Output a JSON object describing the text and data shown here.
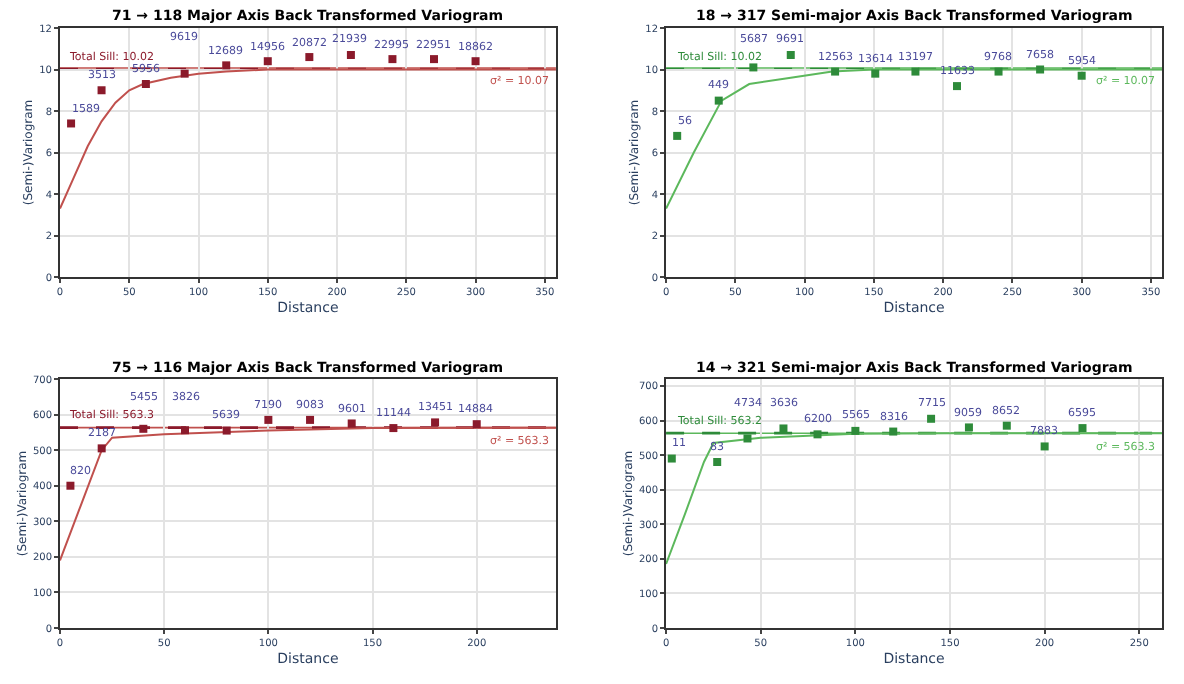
{
  "chart_data": [
    {
      "type": "scatter",
      "title": "71 → 118 Major Axis Back Transformed Variogram",
      "xlabel": "Distance",
      "ylabel": "(Semi-)Variogram",
      "xlim": [
        0,
        358
      ],
      "xticks": [
        0,
        50,
        100,
        150,
        200,
        250,
        300,
        350
      ],
      "ylim": [
        0,
        12
      ],
      "yticks": [
        0,
        2,
        4,
        6,
        8,
        10,
        12
      ],
      "grid": true,
      "series": [
        {
          "type": "scatter",
          "marker": "square",
          "color": "#8b1a2b",
          "x": [
            8,
            30,
            62,
            90,
            120,
            150,
            180,
            210,
            240,
            270,
            300
          ],
          "values": [
            7.4,
            9.0,
            9.3,
            9.8,
            10.2,
            10.4,
            10.6,
            10.7,
            10.5,
            10.5,
            10.4
          ]
        },
        {
          "type": "line",
          "color": "#c0504d",
          "x": [
            0,
            10,
            20,
            30,
            40,
            50,
            60,
            80,
            100,
            120,
            150,
            358
          ],
          "values": [
            3.3,
            4.8,
            6.3,
            7.5,
            8.4,
            9.0,
            9.3,
            9.6,
            9.8,
            9.9,
            10.0,
            10.0
          ]
        }
      ],
      "annotations": [
        {
          "text": "1589",
          "x": 8,
          "y": 7.4
        },
        {
          "text": "3513",
          "x": 30,
          "y": 9.0
        },
        {
          "text": "5956",
          "x": 62,
          "y": 9.3
        },
        {
          "text": "9619",
          "x": 90,
          "y": 9.8
        },
        {
          "text": "12689",
          "x": 120,
          "y": 10.2
        },
        {
          "text": "14956",
          "x": 150,
          "y": 10.4
        },
        {
          "text": "20872",
          "x": 180,
          "y": 10.6
        },
        {
          "text": "21939",
          "x": 210,
          "y": 10.7
        },
        {
          "text": "22995",
          "x": 240,
          "y": 10.5
        },
        {
          "text": "22951",
          "x": 270,
          "y": 10.5
        },
        {
          "text": "18862",
          "x": 300,
          "y": 10.4
        }
      ],
      "ref_lines": [
        {
          "axis": "y",
          "value": 10.02,
          "label": "Total Sill: 10.02",
          "color": "#8b1a2b",
          "line_style": "dashed"
        },
        {
          "axis": "y",
          "value": 10.07,
          "label": "σ² = 10.07",
          "color": "#c0504d",
          "line_style": "solid"
        }
      ]
    },
    {
      "type": "scatter",
      "title": "18 → 317 Semi-major Axis Back Transformed Variogram",
      "xlabel": "Distance",
      "ylabel": "(Semi-)Variogram",
      "xlim": [
        0,
        358
      ],
      "xticks": [
        0,
        50,
        100,
        150,
        200,
        250,
        300,
        350
      ],
      "ylim": [
        0,
        12
      ],
      "yticks": [
        0,
        2,
        4,
        6,
        8,
        10,
        12
      ],
      "grid": true,
      "series": [
        {
          "type": "scatter",
          "marker": "square",
          "color": "#2e8b3a",
          "x": [
            8,
            38,
            63,
            90,
            122,
            151,
            180,
            210,
            240,
            270,
            300
          ],
          "values": [
            6.8,
            8.5,
            10.1,
            10.7,
            9.9,
            9.8,
            9.9,
            9.2,
            9.9,
            10.0,
            9.7
          ]
        },
        {
          "type": "line",
          "color": "#5cb85c",
          "x": [
            0,
            20,
            40,
            60,
            90,
            120,
            150,
            358
          ],
          "values": [
            3.3,
            6.0,
            8.5,
            9.3,
            9.6,
            9.9,
            10.0,
            10.0
          ]
        }
      ],
      "annotations": [
        {
          "text": "56",
          "x": 8,
          "y": 6.8
        },
        {
          "text": "449",
          "x": 38,
          "y": 8.5
        },
        {
          "text": "5687",
          "x": 63,
          "y": 10.1
        },
        {
          "text": "9691",
          "x": 90,
          "y": 10.7
        },
        {
          "text": "12563",
          "x": 122,
          "y": 9.9
        },
        {
          "text": "13614",
          "x": 151,
          "y": 9.8
        },
        {
          "text": "13197",
          "x": 180,
          "y": 9.9
        },
        {
          "text": "11633",
          "x": 210,
          "y": 9.2
        },
        {
          "text": "9768",
          "x": 240,
          "y": 9.9
        },
        {
          "text": "7658",
          "x": 270,
          "y": 10.0
        },
        {
          "text": "5954",
          "x": 300,
          "y": 9.7
        }
      ],
      "ref_lines": [
        {
          "axis": "y",
          "value": 10.02,
          "label": "Total Sill: 10.02",
          "color": "#2e8b3a",
          "line_style": "dashed"
        },
        {
          "axis": "y",
          "value": 10.07,
          "label": "σ² = 10.07",
          "color": "#5cb85c",
          "line_style": "solid"
        }
      ]
    },
    {
      "type": "scatter",
      "title": "75 → 116 Major Axis Back Transformed Variogram",
      "xlabel": "Distance",
      "ylabel": "(Semi-)Variogram",
      "xlim": [
        0,
        238
      ],
      "xticks": [
        0,
        50,
        100,
        150,
        200
      ],
      "ylim": [
        0,
        700
      ],
      "yticks": [
        0,
        100,
        200,
        300,
        400,
        500,
        600,
        700
      ],
      "grid": true,
      "series": [
        {
          "type": "scatter",
          "marker": "square",
          "color": "#8b1a2b",
          "x": [
            5,
            20,
            40,
            60,
            80,
            100,
            120,
            140,
            160,
            180,
            200
          ],
          "values": [
            400,
            505,
            560,
            556,
            555,
            585,
            585,
            575,
            562,
            578,
            573
          ]
        },
        {
          "type": "line",
          "color": "#c0504d",
          "x": [
            0,
            10,
            20,
            25,
            50,
            100,
            150,
            238
          ],
          "values": [
            190,
            345,
            500,
            535,
            545,
            555,
            562,
            563
          ]
        }
      ],
      "annotations": [
        {
          "text": "820",
          "x": 5,
          "y": 400
        },
        {
          "text": "2187",
          "x": 20,
          "y": 505
        },
        {
          "text": "5455",
          "x": 40,
          "y": 560
        },
        {
          "text": "3826",
          "x": 60,
          "y": 556
        },
        {
          "text": "5639",
          "x": 80,
          "y": 555
        },
        {
          "text": "7190",
          "x": 100,
          "y": 585
        },
        {
          "text": "9083",
          "x": 120,
          "y": 585
        },
        {
          "text": "9601",
          "x": 140,
          "y": 575
        },
        {
          "text": "11144",
          "x": 160,
          "y": 562
        },
        {
          "text": "13451",
          "x": 180,
          "y": 578
        },
        {
          "text": "14884",
          "x": 200,
          "y": 573
        }
      ],
      "ref_lines": [
        {
          "axis": "y",
          "value": 563.3,
          "label": "Total Sill: 563.3",
          "color": "#8b1a2b",
          "line_style": "dashed"
        },
        {
          "axis": "y",
          "value": 563.3,
          "label": "σ² = 563.3",
          "color": "#c0504d",
          "line_style": "solid"
        }
      ]
    },
    {
      "type": "scatter",
      "title": "14 → 321 Semi-major Axis Back Transformed Variogram",
      "xlabel": "Distance",
      "ylabel": "(Semi-)Variogram",
      "xlim": [
        0,
        262
      ],
      "xticks": [
        0,
        50,
        100,
        150,
        200,
        250
      ],
      "ylim": [
        0,
        720
      ],
      "yticks": [
        0,
        100,
        200,
        300,
        400,
        500,
        600,
        700
      ],
      "grid": true,
      "series": [
        {
          "type": "scatter",
          "marker": "square",
          "color": "#2e8b3a",
          "x": [
            3,
            27,
            43,
            62,
            80,
            100,
            120,
            140,
            160,
            180,
            200,
            220
          ],
          "values": [
            490,
            480,
            548,
            577,
            560,
            570,
            568,
            605,
            580,
            585,
            525,
            578
          ]
        },
        {
          "type": "line",
          "color": "#5cb85c",
          "x": [
            0,
            10,
            20,
            25,
            50,
            100,
            150,
            262
          ],
          "values": [
            185,
            330,
            480,
            535,
            550,
            562,
            563,
            563
          ]
        }
      ],
      "annotations": [
        {
          "text": "11",
          "x": 3,
          "y": 490
        },
        {
          "text": "83",
          "x": 27,
          "y": 480
        },
        {
          "text": "4734",
          "x": 43,
          "y": 548
        },
        {
          "text": "3636",
          "x": 62,
          "y": 577
        },
        {
          "text": "6200",
          "x": 80,
          "y": 560
        },
        {
          "text": "5565",
          "x": 100,
          "y": 570
        },
        {
          "text": "8316",
          "x": 120,
          "y": 568
        },
        {
          "text": "7715",
          "x": 140,
          "y": 605
        },
        {
          "text": "9059",
          "x": 160,
          "y": 580
        },
        {
          "text": "8652",
          "x": 180,
          "y": 585
        },
        {
          "text": "7883",
          "x": 200,
          "y": 525
        },
        {
          "text": "6595",
          "x": 220,
          "y": 578
        }
      ],
      "ref_lines": [
        {
          "axis": "y",
          "value": 563.2,
          "label": "Total Sill: 563.2",
          "color": "#2e8b3a",
          "line_style": "dashed"
        },
        {
          "axis": "y",
          "value": 563.3,
          "label": "σ² = 563.3",
          "color": "#5cb85c",
          "line_style": "solid"
        }
      ]
    }
  ]
}
